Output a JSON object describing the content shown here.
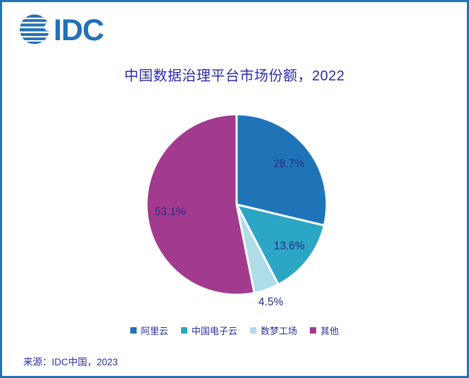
{
  "theme": {
    "border_color": "#2473B5",
    "logo_color": "#2272B9",
    "title_color": "#2B2BAB",
    "text_color": "#2B309E",
    "label_color": "#232C85",
    "background": "#FFFFFF"
  },
  "logo": {
    "text": "IDC"
  },
  "title": "中国数据治理平台市场份额，2022",
  "source": "来源：IDC中国，2023",
  "chart_data": {
    "type": "pie",
    "title": "中国数据治理平台市场份额，2022",
    "start_angle_deg": 0,
    "direction": "clockwise",
    "legend_position": "bottom",
    "slice_gap_stroke": "#FFFFFF",
    "slices": [
      {
        "label": "阿里云",
        "value": 28.7,
        "display": "28.7%",
        "color": "#1F74B8",
        "label_inside": true
      },
      {
        "label": "中国电子云",
        "value": 13.6,
        "display": "13.6%",
        "color": "#2BA6C5",
        "label_inside": true
      },
      {
        "label": "数梦工场",
        "value": 4.5,
        "display": "4.5%",
        "color": "#AEDCE8",
        "label_inside": false
      },
      {
        "label": "其他",
        "value": 53.1,
        "display": "53.1%",
        "color": "#A23A8E",
        "label_inside": true
      }
    ]
  }
}
